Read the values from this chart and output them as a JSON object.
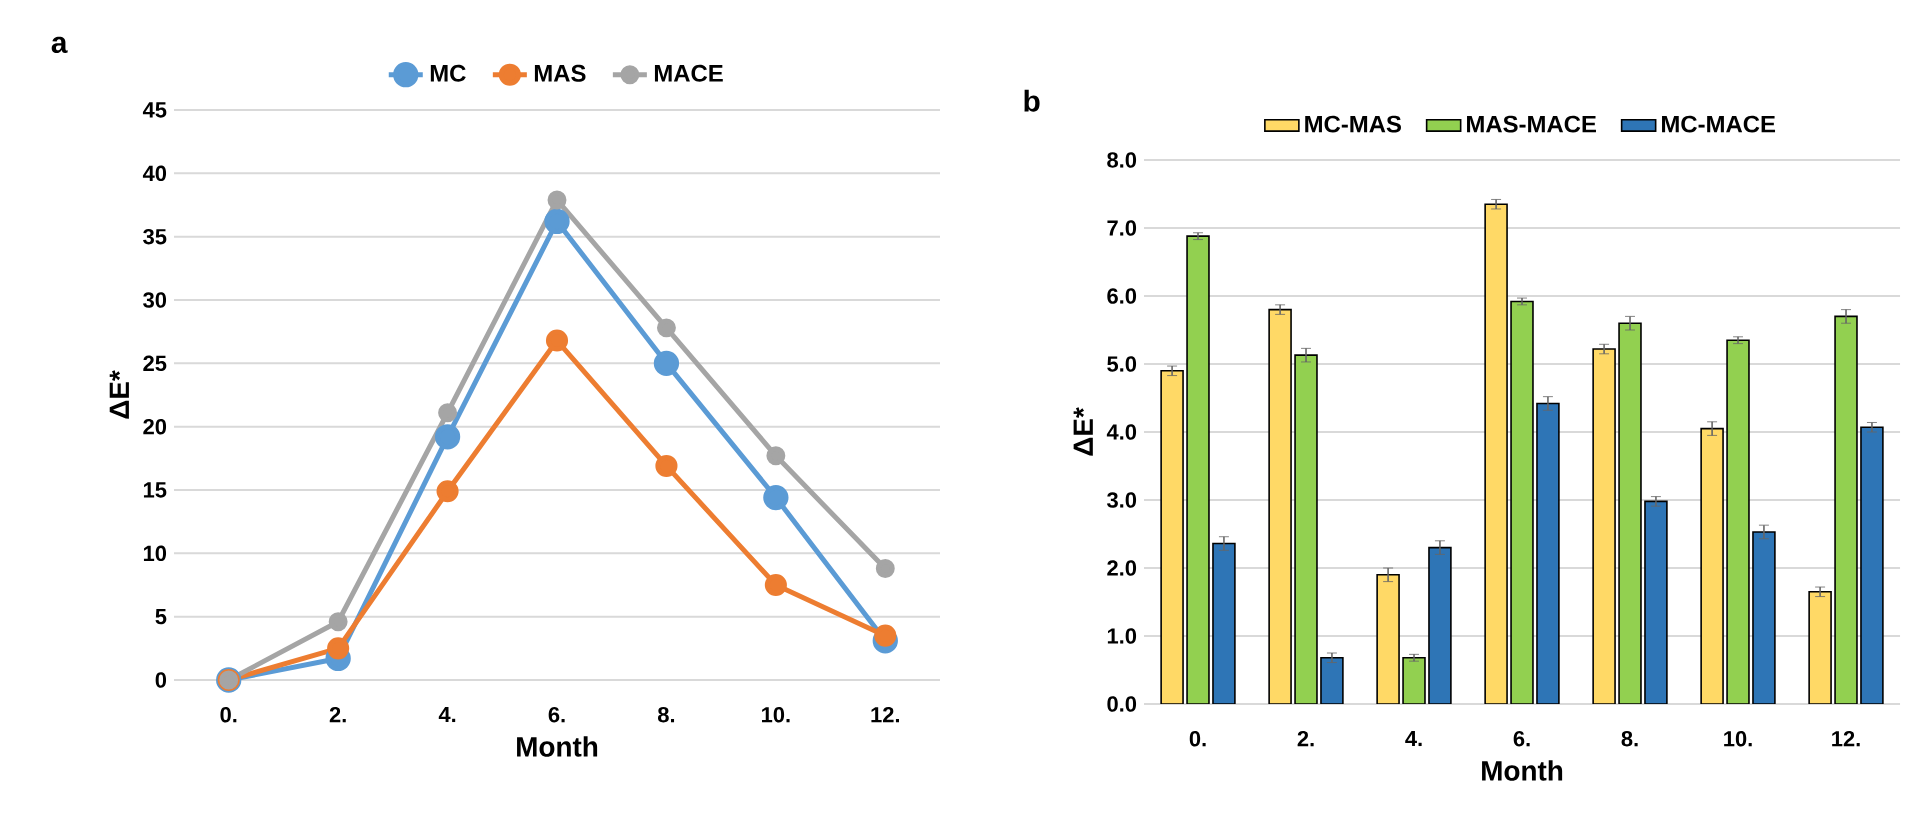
{
  "chart_data": [
    {
      "type": "line",
      "title": "a",
      "xlabel": "Month",
      "ylabel": "ΔE*",
      "categories": [
        "0.",
        "2.",
        "4.",
        "6.",
        "8.",
        "10.",
        "12."
      ],
      "ylim": [
        0,
        45
      ],
      "yticks": [
        0,
        5,
        10,
        15,
        20,
        25,
        30,
        35,
        40,
        45
      ],
      "grid": "y",
      "legend": "top",
      "marker": "circle",
      "line_style": "solid",
      "series": [
        {
          "name": "MC",
          "color": "#5b9bd5",
          "values": [
            0,
            1.7,
            19.2,
            36.2,
            25,
            14.4,
            3.1
          ]
        },
        {
          "name": "MAS",
          "color": "#ed7d31",
          "values": [
            0,
            2.5,
            14.9,
            26.8,
            16.9,
            7.5,
            3.5
          ]
        },
        {
          "name": "MACE",
          "color": "#a5a5a5",
          "values": [
            0,
            4.6,
            21.1,
            37.9,
            27.8,
            17.7,
            8.8
          ]
        }
      ]
    },
    {
      "type": "bar",
      "title": "b",
      "xlabel": "Month",
      "ylabel": "ΔE*",
      "categories": [
        "0.",
        "2.",
        "4.",
        "6.",
        "8.",
        "10.",
        "12."
      ],
      "ylim": [
        0,
        8
      ],
      "yticks": [
        {
          "value": 0,
          "label": "0.0"
        },
        {
          "value": 1,
          "label": "1.0"
        },
        {
          "value": 2,
          "label": "2.0"
        },
        {
          "value": 3,
          "label": "3.0"
        },
        {
          "value": 4,
          "label": "4.0"
        },
        {
          "value": 5,
          "label": "5.0"
        },
        {
          "value": 6,
          "label": "6.0"
        },
        {
          "value": 7,
          "label": "7.0"
        },
        {
          "value": 8,
          "label": "8.0"
        }
      ],
      "grid": "y",
      "legend": "top",
      "series": [
        {
          "name": "MC-MAS",
          "color": "#ffd966",
          "values": [
            4.9,
            5.8,
            1.9,
            7.35,
            5.22,
            4.05,
            1.65
          ],
          "errors": [
            0.07,
            0.07,
            0.1,
            0.07,
            0.07,
            0.1,
            0.07
          ]
        },
        {
          "name": "MAS-MACE",
          "color": "#92d050",
          "values": [
            6.88,
            5.13,
            0.68,
            5.92,
            5.6,
            5.35,
            5.7
          ],
          "errors": [
            0.05,
            0.1,
            0.05,
            0.05,
            0.1,
            0.05,
            0.1
          ]
        },
        {
          "name": "MC-MACE",
          "color": "#2e75b6",
          "values": [
            2.36,
            0.68,
            2.3,
            4.42,
            2.98,
            2.53,
            4.07
          ],
          "errors": [
            0.1,
            0.07,
            0.1,
            0.1,
            0.07,
            0.1,
            0.07
          ]
        }
      ]
    }
  ]
}
